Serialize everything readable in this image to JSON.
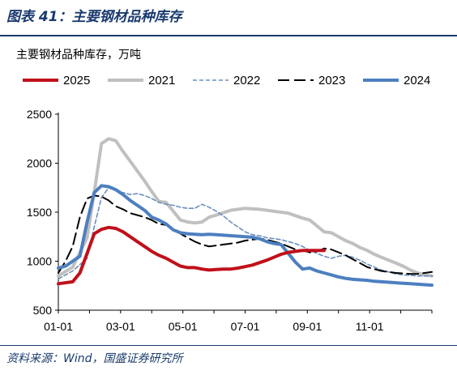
{
  "figure": {
    "title": "图表 41：主要钢材品种库存",
    "source": "资料来源：Wind，国盛证券研究所"
  },
  "chart_data": {
    "type": "line",
    "title": "主要钢材品种库存，万吨",
    "xlabel": "",
    "ylabel": "",
    "x_tick_labels": [
      "01-01",
      "03-01",
      "05-01",
      "07-01",
      "09-01",
      "11-01"
    ],
    "y_tick_labels": [
      "500",
      "1000",
      "1500",
      "2000",
      "2500"
    ],
    "ylim": [
      500,
      2500
    ],
    "xlim": [
      0,
      52
    ],
    "x_unit": "week of year",
    "grid": false,
    "legend_position": "top",
    "series": [
      {
        "name": "2025",
        "color": "#c0101a",
        "dash": "solid",
        "width": 4,
        "x": [
          0,
          2,
          3,
          4,
          5,
          6,
          7,
          8,
          9,
          10,
          11,
          12,
          13,
          14,
          15,
          16,
          17,
          18,
          19,
          20,
          21,
          22,
          23,
          24,
          25,
          26,
          27,
          28,
          29,
          30,
          31,
          32,
          33,
          34,
          35,
          36,
          37
        ],
        "values": [
          770,
          790,
          880,
          1080,
          1280,
          1325,
          1345,
          1335,
          1300,
          1250,
          1200,
          1150,
          1100,
          1060,
          1030,
          990,
          950,
          935,
          935,
          920,
          910,
          915,
          920,
          920,
          930,
          945,
          960,
          985,
          1010,
          1040,
          1070,
          1090,
          1100,
          1110,
          1110,
          1110,
          1110
        ]
      },
      {
        "name": "2021",
        "color": "#c0c0c0",
        "dash": "solid",
        "width": 4,
        "x": [
          0,
          2,
          4,
          5,
          6,
          7,
          8,
          9,
          10,
          11,
          12,
          13,
          14,
          15,
          16,
          17,
          18,
          19,
          20,
          21,
          22,
          24,
          26,
          28,
          30,
          32,
          34,
          35,
          36,
          37,
          38,
          39,
          40,
          41,
          42,
          43,
          44,
          45,
          46,
          47,
          48,
          49,
          50,
          51,
          52
        ],
        "values": [
          850,
          940,
          1240,
          1700,
          2200,
          2250,
          2230,
          2120,
          2020,
          1920,
          1820,
          1710,
          1610,
          1600,
          1510,
          1420,
          1400,
          1390,
          1400,
          1450,
          1470,
          1520,
          1540,
          1530,
          1510,
          1490,
          1440,
          1420,
          1360,
          1300,
          1290,
          1250,
          1210,
          1180,
          1140,
          1110,
          1070,
          1040,
          1010,
          980,
          950,
          910,
          880,
          860,
          850
        ]
      },
      {
        "name": "2022",
        "color": "#6a8fc0",
        "dash": "dashed",
        "width": 1.6,
        "x": [
          0,
          2,
          4,
          5,
          6,
          7,
          8,
          9,
          10,
          11,
          12,
          13,
          14,
          15,
          16,
          17,
          18,
          19,
          20,
          21,
          22,
          23,
          24,
          25,
          26,
          27,
          28,
          29,
          30,
          31,
          32,
          33,
          34,
          35,
          36,
          37,
          38,
          39,
          40,
          41,
          42,
          43,
          44,
          45,
          46,
          47,
          48,
          49,
          50,
          51,
          52
        ],
        "values": [
          820,
          900,
          1030,
          1350,
          1650,
          1750,
          1720,
          1700,
          1680,
          1690,
          1670,
          1640,
          1600,
          1580,
          1570,
          1550,
          1540,
          1540,
          1580,
          1550,
          1510,
          1460,
          1400,
          1350,
          1300,
          1270,
          1260,
          1240,
          1230,
          1220,
          1200,
          1180,
          1150,
          1110,
          1080,
          1050,
          1030,
          1050,
          1060,
          1040,
          1010,
          970,
          940,
          910,
          890,
          870,
          860,
          855,
          850,
          850,
          850
        ]
      },
      {
        "name": "2023",
        "color": "#000000",
        "dash": "longdash",
        "width": 2,
        "x": [
          0,
          1,
          2,
          3,
          4,
          5,
          6,
          7,
          8,
          9,
          10,
          11,
          12,
          13,
          14,
          15,
          16,
          17,
          18,
          19,
          20,
          21,
          22,
          23,
          24,
          25,
          26,
          27,
          28,
          29,
          30,
          31,
          32,
          33,
          34,
          35,
          36,
          37,
          38,
          39,
          40,
          41,
          42,
          43,
          44,
          45,
          46,
          47,
          48,
          49,
          50,
          51,
          52
        ],
        "values": [
          880,
          1000,
          1150,
          1450,
          1640,
          1670,
          1660,
          1620,
          1560,
          1530,
          1490,
          1470,
          1450,
          1420,
          1380,
          1370,
          1330,
          1280,
          1240,
          1200,
          1170,
          1150,
          1160,
          1170,
          1180,
          1190,
          1210,
          1220,
          1230,
          1220,
          1200,
          1180,
          1150,
          1120,
          1110,
          1090,
          1100,
          1130,
          1120,
          1090,
          1060,
          1020,
          980,
          940,
          920,
          900,
          890,
          880,
          875,
          870,
          870,
          880,
          890
        ]
      },
      {
        "name": "2024",
        "color": "#4d7fc0",
        "dash": "solid",
        "width": 4,
        "x": [
          0,
          1,
          2,
          3,
          4,
          5,
          6,
          7,
          8,
          9,
          10,
          11,
          12,
          13,
          14,
          15,
          16,
          17,
          18,
          19,
          20,
          21,
          22,
          23,
          24,
          25,
          26,
          27,
          28,
          29,
          30,
          31,
          32,
          33,
          34,
          35,
          36,
          37,
          38,
          39,
          40,
          41,
          42,
          43,
          44,
          45,
          46,
          47,
          48,
          49,
          50,
          51,
          52
        ],
        "values": [
          930,
          950,
          1000,
          1050,
          1400,
          1700,
          1770,
          1760,
          1730,
          1680,
          1620,
          1570,
          1520,
          1450,
          1420,
          1380,
          1320,
          1290,
          1280,
          1275,
          1270,
          1275,
          1270,
          1265,
          1260,
          1255,
          1250,
          1245,
          1230,
          1200,
          1180,
          1170,
          1080,
          990,
          920,
          930,
          900,
          880,
          860,
          840,
          825,
          815,
          810,
          805,
          795,
          790,
          785,
          780,
          775,
          770,
          765,
          760,
          755
        ]
      }
    ]
  }
}
